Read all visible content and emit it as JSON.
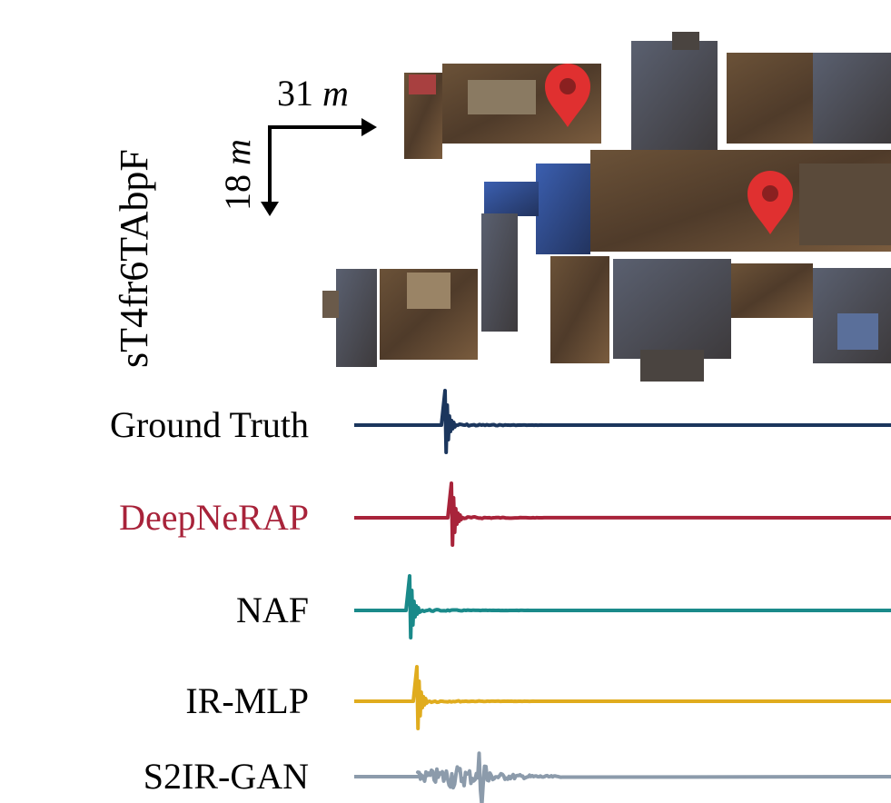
{
  "scene": {
    "id": "sT4fr6TAbpF",
    "width": {
      "value": "31",
      "unit": "m"
    },
    "height": {
      "value": "18",
      "unit": "m"
    }
  },
  "methods": [
    {
      "name": "Ground Truth",
      "color": "#1b365d"
    },
    {
      "name": "DeepNeRAP",
      "color": "#a8233a"
    },
    {
      "name": "NAF",
      "color": "#1a8a8a"
    },
    {
      "name": "IR-MLP",
      "color": "#e0ac1e"
    },
    {
      "name": "S2IR-GAN",
      "color": "#8c9bab"
    }
  ]
}
